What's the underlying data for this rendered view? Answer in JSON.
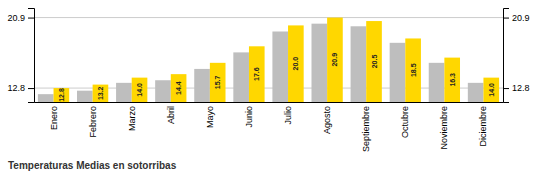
{
  "chart_data": {
    "type": "bar",
    "title": "Temperaturas Medias en sotorribas",
    "categories": [
      "Enero",
      "Febrero",
      "Marzo",
      "Abril",
      "Mayo",
      "Junio",
      "Julio",
      "Agosto",
      "Septiembre",
      "Octubre",
      "Noviembre",
      "Diciembre"
    ],
    "series": [
      {
        "color": "#BEBEBE",
        "values": [
          12.1,
          12.5,
          13.4,
          13.7,
          15.0,
          16.9,
          19.3,
          20.2,
          19.9,
          18.0,
          15.7,
          13.4
        ]
      },
      {
        "color": "#FFD700",
        "values": [
          12.8,
          13.2,
          14.0,
          14.4,
          15.7,
          17.6,
          20.0,
          20.9,
          20.5,
          18.5,
          16.3,
          14.0
        ],
        "data_labels": true,
        "value_labels": [
          "12.8",
          "13.2",
          "14.0",
          "14.4",
          "15.7",
          "17.6",
          "20.0",
          "20.9",
          "20.5",
          "18.5",
          "16.3",
          "14.0"
        ]
      }
    ],
    "ylim": [
      11.2,
      22.0
    ],
    "yticks": [
      12.8,
      20.9
    ],
    "y2lim": [
      11.2,
      22.0
    ],
    "y2ticks": [
      12.8,
      20.9
    ],
    "grid": true
  }
}
